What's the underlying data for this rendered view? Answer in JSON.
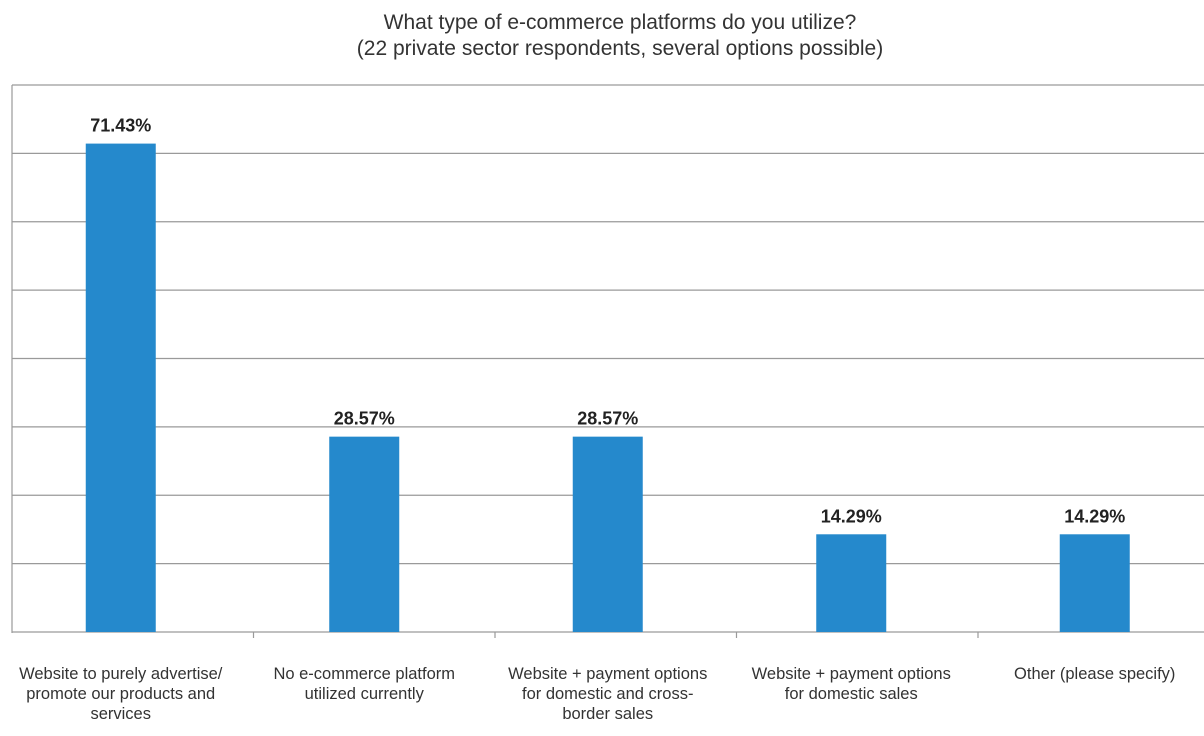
{
  "chart_data": {
    "type": "bar",
    "title": "What type of e-commerce platforms do you utilize?",
    "subtitle": "(22 private sector respondents, several options possible)",
    "categories": [
      "Website to purely advertise/ promote our products and services",
      "No e-commerce platform utilized currently",
      "Website + payment options for domestic and cross-border sales",
      "Website + payment options for domestic sales",
      "Other (please specify)"
    ],
    "category_label_lines": [
      [
        "Website to purely advertise/",
        "promote our products and",
        "services"
      ],
      [
        "No e-commerce platform",
        "utilized currently"
      ],
      [
        "Website + payment options",
        "for domestic and cross-",
        "border sales"
      ],
      [
        "Website + payment options",
        "for domestic sales"
      ],
      [
        "Other (please specify)"
      ]
    ],
    "values": [
      71.43,
      28.57,
      28.57,
      14.29,
      14.29
    ],
    "data_labels": [
      "71.43%",
      "28.57%",
      "28.57%",
      "14.29%",
      "14.29%"
    ],
    "ylim": [
      0,
      80
    ],
    "gridlines": [
      10,
      20,
      30,
      40,
      50,
      60,
      70,
      80
    ],
    "grid": true,
    "bar_color": "#2589cc",
    "grid_color": "#9a9a9a",
    "xlabel": "",
    "ylabel": ""
  }
}
